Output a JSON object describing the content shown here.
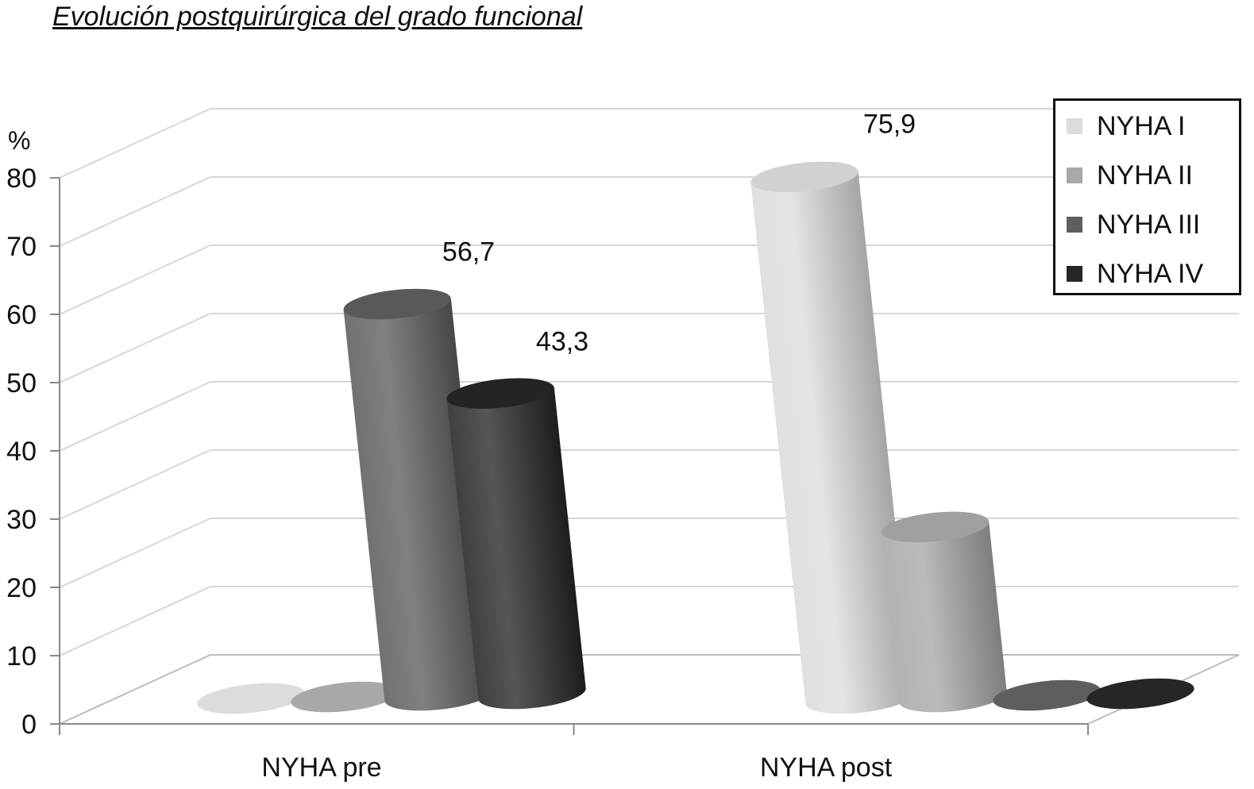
{
  "chart_data": {
    "type": "bar",
    "title": "Evolución postquirúrgica del grado funcional",
    "ylabel": "%",
    "xlabel": "",
    "ylim": [
      0,
      80
    ],
    "y_ticks": [
      "0",
      "10",
      "20",
      "30",
      "40",
      "50",
      "60",
      "70",
      "80"
    ],
    "categories": [
      "NYHA pre",
      "NYHA post"
    ],
    "series": [
      {
        "name": "NYHA I",
        "values": [
          0,
          75.9
        ],
        "labels": [
          "",
          "75,9"
        ],
        "color": "#dcdcdc"
      },
      {
        "name": "NYHA II",
        "values": [
          0,
          24.1
        ],
        "labels": [
          "",
          ""
        ],
        "color": "#a8a8a8"
      },
      {
        "name": "NYHA III",
        "values": [
          56.7,
          0
        ],
        "labels": [
          "56,7",
          ""
        ],
        "color": "#5e5e5e"
      },
      {
        "name": "NYHA IV",
        "values": [
          43.3,
          0
        ],
        "labels": [
          "43,3",
          ""
        ],
        "color": "#262626"
      }
    ],
    "grid": true,
    "legend_position": "top-right",
    "style": "3d-cylinder"
  }
}
